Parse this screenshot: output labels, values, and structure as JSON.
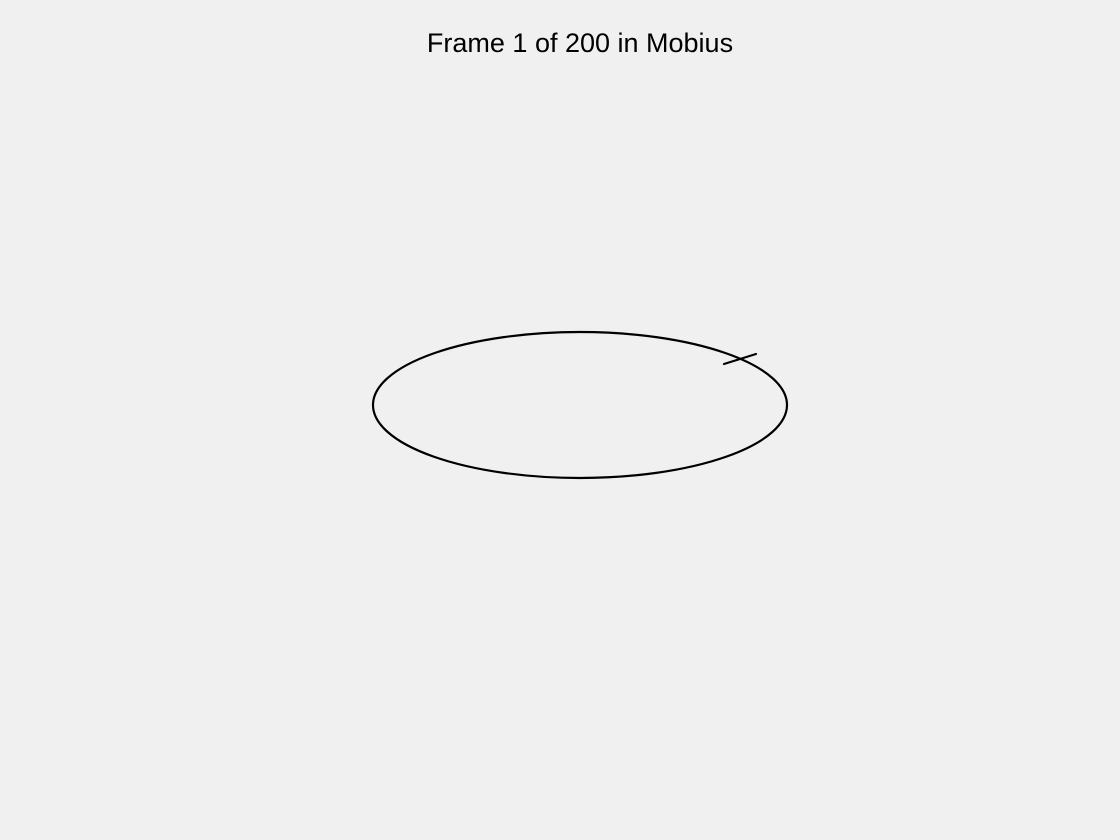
{
  "figure": {
    "title": "Frame 1 of 200 in Mobius",
    "background_color": "#f0f0f0",
    "line_color": "#000000"
  },
  "animation": {
    "current_frame": 1,
    "total_frames": 200
  },
  "icons": {
    "strip_edge": "ellipse-curve",
    "twist_marker": "tick-mark"
  }
}
